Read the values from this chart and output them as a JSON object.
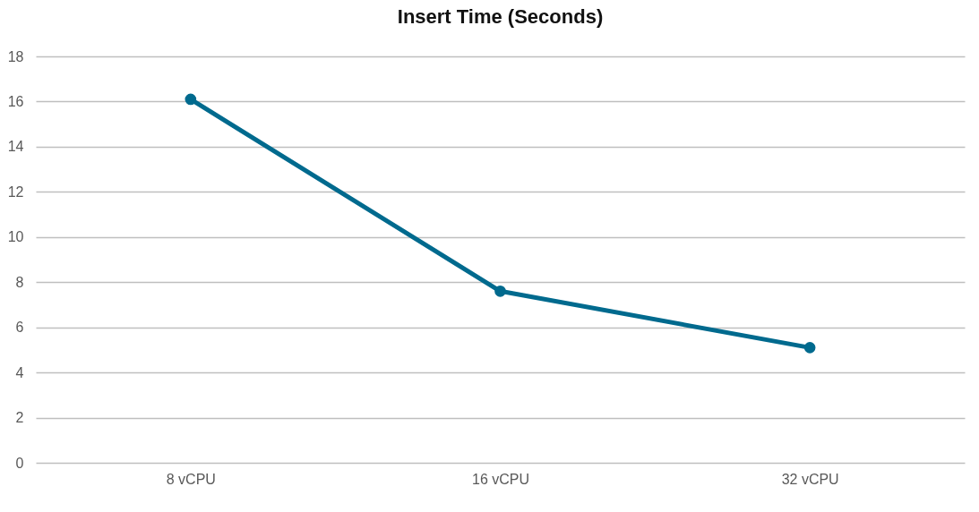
{
  "chart_data": {
    "type": "line",
    "title": "Insert Time (Seconds)",
    "categories": [
      "8 vCPU",
      "16 vCPU",
      "32 vCPU"
    ],
    "series": [
      {
        "color": "#006a8e",
        "values": [
          16.1,
          7.6,
          5.1
        ]
      }
    ],
    "ylim": [
      0,
      18
    ],
    "yticks": [
      0,
      2,
      4,
      6,
      8,
      10,
      12,
      14,
      16,
      18
    ],
    "grid": "y",
    "marker": "circle",
    "line_style": "solid"
  }
}
